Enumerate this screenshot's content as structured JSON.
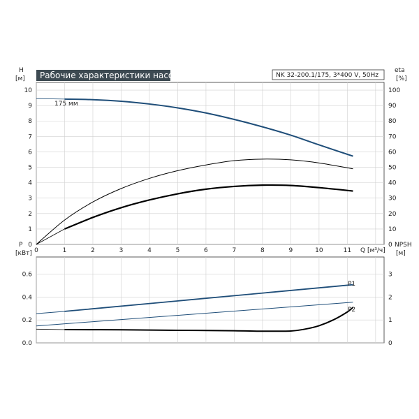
{
  "chart_data": [
    {
      "type": "line",
      "title": "Рабочие характеристики насоса",
      "model": "NK 32-200.1/175, 3*400 V, 50Hz",
      "left_axis": {
        "label": "H",
        "unit": "[м]",
        "range": [
          0,
          10.5
        ],
        "ticks": [
          "0",
          "1",
          "2",
          "3",
          "4",
          "5",
          "6",
          "7",
          "8",
          "9",
          "10"
        ]
      },
      "right_axis": {
        "label": "eta",
        "unit": "[%]",
        "range": [
          0,
          105
        ],
        "ticks": [
          "0",
          "10",
          "20",
          "30",
          "40",
          "50",
          "60",
          "70",
          "80",
          "90",
          "100"
        ]
      },
      "x_axis": {
        "label": "Q [м³/ч]",
        "range": [
          0,
          12.3
        ],
        "ticks": [
          "0",
          "1",
          "2",
          "3",
          "4",
          "5",
          "6",
          "7",
          "8",
          "9",
          "10",
          "11"
        ]
      },
      "grid": true,
      "series": [
        {
          "name": "175 мм",
          "axis": "left",
          "color": "#1f4e79",
          "width": 2,
          "x": [
            1,
            2,
            3,
            4,
            5,
            6,
            7,
            8,
            9,
            10,
            11.2
          ],
          "y": [
            9.42,
            9.38,
            9.28,
            9.1,
            8.85,
            8.52,
            8.1,
            7.62,
            7.08,
            6.45,
            5.72
          ]
        },
        {
          "name": "",
          "axis": "right",
          "color": "#000000",
          "width": 1,
          "x": [
            0,
            1,
            2,
            3,
            4,
            5,
            6,
            7,
            8,
            9,
            10,
            11.2
          ],
          "y": [
            0,
            15.8,
            27.5,
            36.2,
            42.8,
            47.8,
            51.5,
            54.3,
            55.3,
            54.8,
            52.8,
            49.0
          ]
        },
        {
          "name": "",
          "axis": "right",
          "color": "#000000",
          "width": 2.2,
          "x": [
            1,
            2,
            3,
            4,
            5,
            6,
            7,
            8,
            9,
            10,
            11.2
          ],
          "y": [
            10,
            17.5,
            23.8,
            28.8,
            32.8,
            35.8,
            37.6,
            38.4,
            38.2,
            36.8,
            34.6
          ]
        }
      ]
    },
    {
      "type": "line",
      "left_axis": {
        "label": "P",
        "unit": "[кВт]",
        "range": [
          0,
          0.75
        ],
        "ticks": [
          "0.0",
          "0.2",
          "0.4",
          "0.6"
        ]
      },
      "right_axis": {
        "label": "NPSH",
        "unit": "[м]",
        "range": [
          0,
          3.75
        ],
        "ticks": [
          "0",
          "1",
          "2",
          "3"
        ]
      },
      "x_axis": {
        "range": [
          0,
          12.3
        ]
      },
      "grid": true,
      "series": [
        {
          "name": "P1",
          "axis": "left",
          "color": "#1f4e79",
          "width": 1.8,
          "x": [
            1,
            11.2
          ],
          "y": [
            0.275,
            0.508
          ]
        },
        {
          "name": "P1",
          "axis": "left",
          "color": "#1f4e79",
          "width": 1,
          "x": [
            0,
            1
          ],
          "y": [
            0.255,
            0.275
          ],
          "dashed": false
        },
        {
          "name": "P2",
          "axis": "left",
          "color": "#1f4e79",
          "width": 1,
          "x": [
            0,
            11.2
          ],
          "y": [
            0.148,
            0.355
          ]
        },
        {
          "name": "",
          "axis": "right",
          "color": "#000000",
          "width": 2,
          "x": [
            1,
            3,
            5,
            7,
            8,
            9,
            9.5,
            10,
            10.5,
            11,
            11.2
          ],
          "y": [
            0.58,
            0.57,
            0.55,
            0.53,
            0.51,
            0.52,
            0.6,
            0.75,
            1.0,
            1.35,
            1.55
          ]
        },
        {
          "name": "",
          "axis": "right",
          "color": "#000000",
          "width": 0.8,
          "x": [
            0,
            1
          ],
          "y": [
            0.6,
            0.58
          ]
        }
      ],
      "labels": [
        "P1",
        "P2"
      ]
    }
  ]
}
